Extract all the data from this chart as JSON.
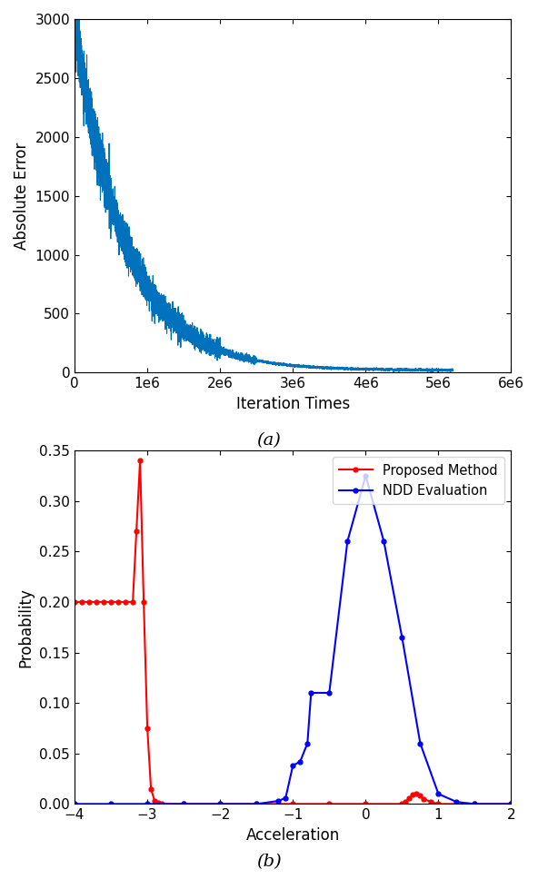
{
  "plot_a": {
    "subtitle": "(a)",
    "xlabel": "Iteration Times",
    "ylabel": "Absolute Error",
    "xlim": [
      0,
      6000000
    ],
    "ylim": [
      0,
      3000
    ],
    "yticks": [
      0,
      500,
      1000,
      1500,
      2000,
      2500,
      3000
    ],
    "xticks": [
      0,
      1000000,
      2000000,
      3000000,
      4000000,
      5000000,
      6000000
    ],
    "line_color": "#0072BD",
    "line_width": 0.8
  },
  "plot_b": {
    "subtitle": "(b)",
    "xlabel": "Acceleration",
    "ylabel": "Probability",
    "xlim": [
      -4,
      2
    ],
    "ylim": [
      0,
      0.35
    ],
    "yticks": [
      0,
      0.05,
      0.1,
      0.15,
      0.2,
      0.25,
      0.3,
      0.35
    ],
    "xticks": [
      -4,
      -3,
      -2,
      -1,
      0,
      1,
      2
    ],
    "proposed_color": "#FF0000",
    "ndd_color": "#0000FF",
    "legend_proposed": "Proposed Method",
    "legend_ndd": "NDD Evaluation"
  }
}
